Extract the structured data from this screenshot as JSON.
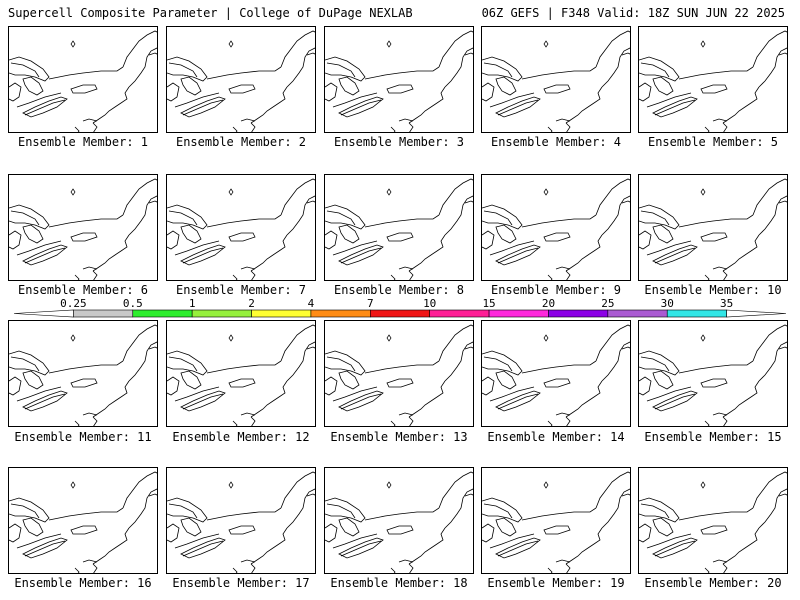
{
  "header": {
    "title_left": "Supercell Composite Parameter | College of DuPage NEXLAB",
    "title_right": "06Z GEFS | F348 Valid: 18Z SUN JUN 22 2025"
  },
  "caption_prefix": "Ensemble Member: ",
  "members": [
    1,
    2,
    3,
    4,
    5,
    6,
    7,
    8,
    9,
    10,
    11,
    12,
    13,
    14,
    15,
    16,
    17,
    18,
    19,
    20
  ],
  "colorbar": {
    "labels": [
      "0.25",
      "0.5",
      "1",
      "2",
      "4",
      "7",
      "10",
      "15",
      "20",
      "25",
      "30",
      "35"
    ],
    "colors": [
      "#ffffff",
      "#c8c8c8",
      "#2dee2d",
      "#96f03c",
      "#ffff32",
      "#ff8c14",
      "#f01414",
      "#ff1e96",
      "#ff28dc",
      "#8c00e6",
      "#aa5ad2",
      "#32e6e6",
      "#ffffff"
    ]
  },
  "colors": {
    "map_outline": "#000000",
    "background": "#ffffff"
  }
}
